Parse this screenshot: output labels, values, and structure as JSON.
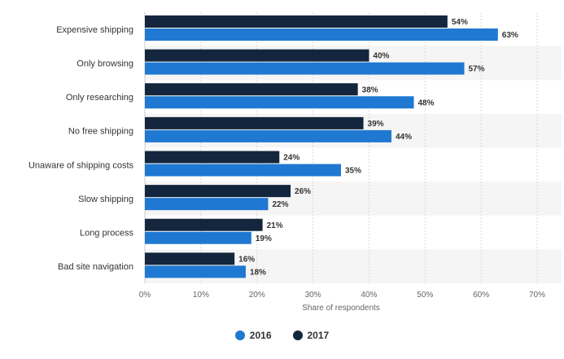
{
  "colors": {
    "s2016": "#1f78d1",
    "s2017": "#13263d",
    "band": "#f5f5f5",
    "grid": "#d9d9d9"
  },
  "chart_data": {
    "type": "bar",
    "orientation": "horizontal",
    "categories": [
      "Expensive shipping",
      "Only browsing",
      "Only researching",
      "No free shipping",
      "Unaware of shipping costs",
      "Slow shipping",
      "Long process",
      "Bad site navigation"
    ],
    "series": [
      {
        "name": "2017",
        "values": [
          54,
          40,
          38,
          39,
          24,
          26,
          21,
          16
        ]
      },
      {
        "name": "2016",
        "values": [
          63,
          57,
          48,
          44,
          35,
          22,
          19,
          18
        ]
      }
    ],
    "value_suffix": "%",
    "xlim": [
      0,
      70
    ],
    "xticks": [
      "0%",
      "10%",
      "20%",
      "30%",
      "40%",
      "50%",
      "60%",
      "70%"
    ],
    "xlabel": "Share of respondents",
    "grid": true,
    "legend": [
      "2016",
      "2017"
    ],
    "legend_position": "bottom-center"
  }
}
